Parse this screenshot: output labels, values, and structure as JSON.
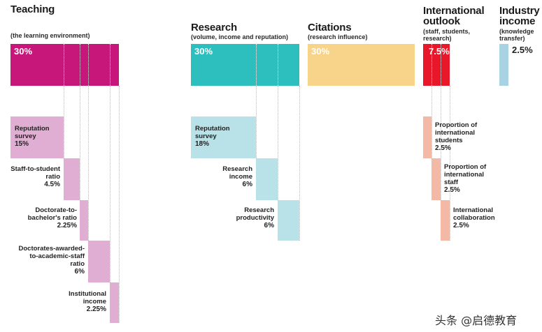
{
  "categories": {
    "teaching": {
      "title": "Teaching",
      "subtitle": "(the learning environment)",
      "weight": "30%",
      "color": "#c8177a"
    },
    "research": {
      "title": "Research",
      "subtitle": "(volume, income and reputation)",
      "weight": "30%",
      "color": "#2dbfbd"
    },
    "citations": {
      "title": "Citations",
      "subtitle": "(research influence)",
      "weight": "30%",
      "color": "#f7d48a"
    },
    "international": {
      "title": [
        "International",
        "outlook"
      ],
      "subtitle": [
        "(staff, students,",
        "research)"
      ],
      "weight": "7.5%",
      "color": "#e8182a"
    },
    "industry": {
      "title": [
        "Industry",
        "income"
      ],
      "subtitle": [
        "(knowledge",
        "transfer)"
      ],
      "weight": "2.5%",
      "color": "#a9d3e3"
    }
  },
  "teaching_items": [
    {
      "label": [
        "Reputation",
        "survey"
      ],
      "value": "15%"
    },
    {
      "label": [
        "Staff-to-student",
        "ratio"
      ],
      "value": "4.5%"
    },
    {
      "label": [
        "Doctorate-to-",
        "bachelor's ratio"
      ],
      "value": "2.25%"
    },
    {
      "label": [
        "Doctorates-awarded-",
        "to-academic-staff",
        "ratio"
      ],
      "value": "6%"
    },
    {
      "label": [
        "Institutional",
        "income"
      ],
      "value": "2.25%"
    }
  ],
  "research_items": [
    {
      "label": [
        "Reputation",
        "survey"
      ],
      "value": "18%"
    },
    {
      "label": [
        "Research",
        "income"
      ],
      "value": "6%"
    },
    {
      "label": [
        "Research",
        "productivity"
      ],
      "value": "6%"
    }
  ],
  "international_items": [
    {
      "label": [
        "Proportion of",
        "international",
        "students"
      ],
      "value": "2.5%"
    },
    {
      "label": [
        "Proportion of",
        "international",
        "staff"
      ],
      "value": "2.5%"
    },
    {
      "label": [
        "International",
        "collaboration"
      ],
      "value": "2.5%"
    }
  ],
  "sub_colors": {
    "teaching": "#e0aed3",
    "research": "#b9e1e8",
    "international": "#f3b9a6"
  },
  "watermark": "头条 @启德教育"
}
